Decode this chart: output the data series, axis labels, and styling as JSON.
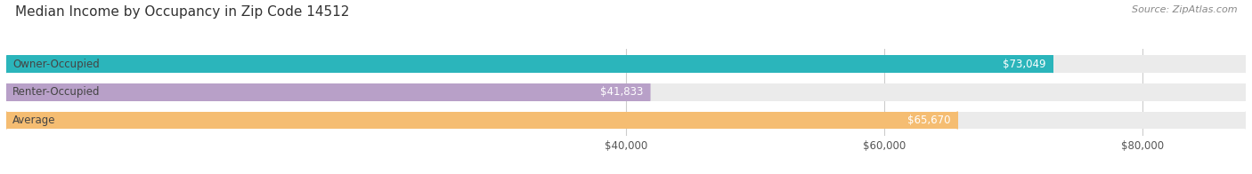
{
  "title": "Median Income by Occupancy in Zip Code 14512",
  "source": "Source: ZipAtlas.com",
  "categories": [
    "Owner-Occupied",
    "Renter-Occupied",
    "Average"
  ],
  "values": [
    73049,
    41833,
    65670
  ],
  "bar_colors": [
    "#2bb5bb",
    "#b8a0c8",
    "#f5bd72"
  ],
  "bar_bg_color": "#ebebeb",
  "value_labels": [
    "$73,049",
    "$41,833",
    "$65,670"
  ],
  "xmin": -8000,
  "xmax": 88000,
  "xticks": [
    40000,
    60000,
    80000
  ],
  "xtick_labels": [
    "$40,000",
    "$60,000",
    "$80,000"
  ],
  "title_fontsize": 11,
  "source_fontsize": 8,
  "label_fontsize": 8.5,
  "value_fontsize": 8.5,
  "tick_fontsize": 8.5,
  "background_color": "#ffffff",
  "bar_height": 0.62,
  "bar_rounding": 0.31
}
